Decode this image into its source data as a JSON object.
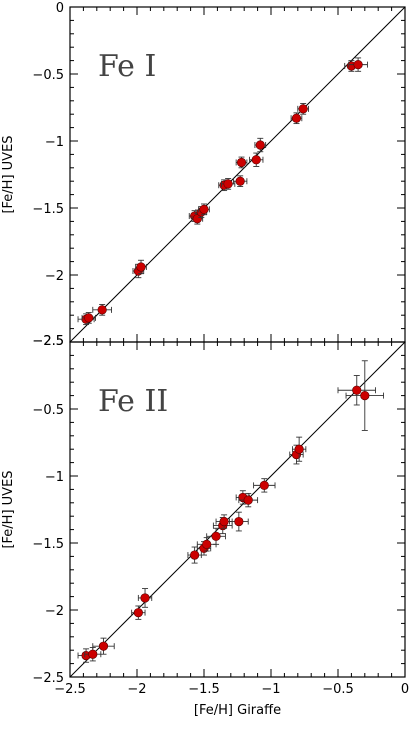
{
  "chart_data": [
    {
      "type": "scatter",
      "title": "Fe I",
      "xlabel": "",
      "ylabel": "[Fe/H] UVES",
      "xlim": [
        -2.5,
        0
      ],
      "ylim": [
        -2.5,
        0
      ],
      "x_ticks": [
        -2.5,
        -2,
        -1.5,
        -1,
        -0.5,
        0
      ],
      "x_tick_labels": [
        "",
        "",
        "",
        "",
        "",
        ""
      ],
      "y_ticks": [
        -2.5,
        -2,
        -1.5,
        -1,
        -0.5,
        0
      ],
      "y_tick_labels": [
        "−2.5",
        "−2",
        "−1.5",
        "−1",
        "−0.5",
        "0"
      ],
      "reference_line": "y = x",
      "grid": false,
      "points": [
        {
          "x": -2.38,
          "y": -2.33,
          "xerr": 0.06,
          "yerr": 0.04
        },
        {
          "x": -2.36,
          "y": -2.32,
          "xerr": 0.05,
          "yerr": 0.04
        },
        {
          "x": -2.26,
          "y": -2.26,
          "xerr": 0.07,
          "yerr": 0.04
        },
        {
          "x": -1.99,
          "y": -1.97,
          "xerr": 0.04,
          "yerr": 0.05
        },
        {
          "x": -1.97,
          "y": -1.94,
          "xerr": 0.04,
          "yerr": 0.05
        },
        {
          "x": -1.57,
          "y": -1.56,
          "xerr": 0.04,
          "yerr": 0.04
        },
        {
          "x": -1.55,
          "y": -1.58,
          "xerr": 0.04,
          "yerr": 0.04
        },
        {
          "x": -1.52,
          "y": -1.53,
          "xerr": 0.04,
          "yerr": 0.04
        },
        {
          "x": -1.5,
          "y": -1.51,
          "xerr": 0.04,
          "yerr": 0.04
        },
        {
          "x": -1.35,
          "y": -1.33,
          "xerr": 0.04,
          "yerr": 0.04
        },
        {
          "x": -1.32,
          "y": -1.32,
          "xerr": 0.05,
          "yerr": 0.04
        },
        {
          "x": -1.23,
          "y": -1.3,
          "xerr": 0.05,
          "yerr": 0.04
        },
        {
          "x": -1.22,
          "y": -1.16,
          "xerr": 0.04,
          "yerr": 0.04
        },
        {
          "x": -1.11,
          "y": -1.14,
          "xerr": 0.05,
          "yerr": 0.05
        },
        {
          "x": -1.08,
          "y": -1.03,
          "xerr": 0.04,
          "yerr": 0.05
        },
        {
          "x": -0.81,
          "y": -0.83,
          "xerr": 0.04,
          "yerr": 0.04
        },
        {
          "x": -0.76,
          "y": -0.76,
          "xerr": 0.04,
          "yerr": 0.04
        },
        {
          "x": -0.4,
          "y": -0.44,
          "xerr": 0.05,
          "yerr": 0.04
        },
        {
          "x": -0.35,
          "y": -0.43,
          "xerr": 0.07,
          "yerr": 0.05
        }
      ]
    },
    {
      "type": "scatter",
      "title": "Fe II",
      "xlabel": "[Fe/H] Giraffe",
      "ylabel": "[Fe/H] UVES",
      "xlim": [
        -2.5,
        0
      ],
      "ylim": [
        -2.5,
        0
      ],
      "x_ticks": [
        -2.5,
        -2,
        -1.5,
        -1,
        -0.5,
        0
      ],
      "x_tick_labels": [
        "−2.5",
        "−2",
        "−1.5",
        "−1",
        "−0.5",
        "0"
      ],
      "y_ticks": [
        -2.5,
        -2,
        -1.5,
        -1,
        -0.5
      ],
      "y_tick_labels": [
        "−2.5",
        "−2",
        "−1.5",
        "−1",
        "−0.5"
      ],
      "top_label": "−2.5",
      "reference_line": "y = x",
      "grid": false,
      "points": [
        {
          "x": -2.38,
          "y": -2.34,
          "xerr": 0.06,
          "yerr": 0.05
        },
        {
          "x": -2.33,
          "y": -2.33,
          "xerr": 0.06,
          "yerr": 0.05
        },
        {
          "x": -2.25,
          "y": -2.27,
          "xerr": 0.08,
          "yerr": 0.06
        },
        {
          "x": -1.99,
          "y": -2.02,
          "xerr": 0.05,
          "yerr": 0.05
        },
        {
          "x": -1.94,
          "y": -1.91,
          "xerr": 0.05,
          "yerr": 0.07
        },
        {
          "x": -1.57,
          "y": -1.59,
          "xerr": 0.05,
          "yerr": 0.06
        },
        {
          "x": -1.5,
          "y": -1.54,
          "xerr": 0.05,
          "yerr": 0.05
        },
        {
          "x": -1.48,
          "y": -1.51,
          "xerr": 0.07,
          "yerr": 0.05
        },
        {
          "x": -1.41,
          "y": -1.45,
          "xerr": 0.07,
          "yerr": 0.06
        },
        {
          "x": -1.36,
          "y": -1.37,
          "xerr": 0.07,
          "yerr": 0.06
        },
        {
          "x": -1.35,
          "y": -1.34,
          "xerr": 0.06,
          "yerr": 0.05
        },
        {
          "x": -1.24,
          "y": -1.34,
          "xerr": 0.07,
          "yerr": 0.07
        },
        {
          "x": -1.21,
          "y": -1.16,
          "xerr": 0.05,
          "yerr": 0.05
        },
        {
          "x": -1.17,
          "y": -1.18,
          "xerr": 0.07,
          "yerr": 0.05
        },
        {
          "x": -1.05,
          "y": -1.07,
          "xerr": 0.08,
          "yerr": 0.05
        },
        {
          "x": -0.81,
          "y": -0.84,
          "xerr": 0.05,
          "yerr": 0.07
        },
        {
          "x": -0.79,
          "y": -0.8,
          "xerr": 0.05,
          "yerr": 0.09
        },
        {
          "x": -0.36,
          "y": -0.36,
          "xerr": 0.14,
          "yerr": 0.11
        },
        {
          "x": -0.3,
          "y": -0.4,
          "xerr": 0.14,
          "yerr": 0.26
        }
      ]
    }
  ]
}
